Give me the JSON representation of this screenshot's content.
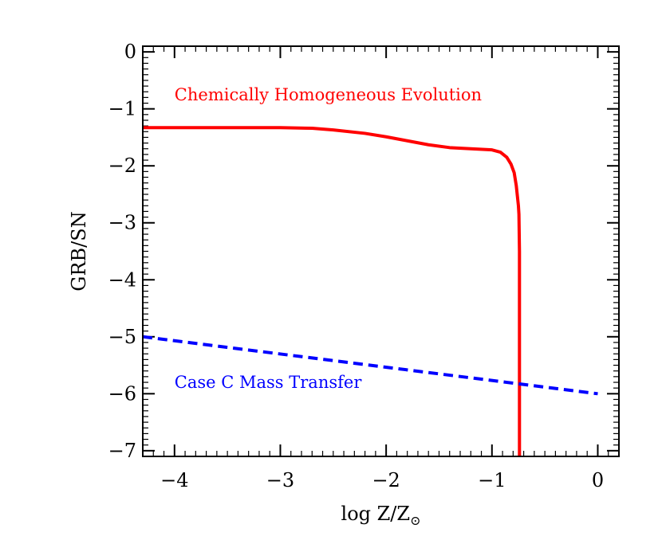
{
  "chart_data": {
    "type": "line",
    "xlabel": "log Z/Z",
    "xlabel_subscript": "⊙",
    "ylabel": "GRB/SN",
    "xlim": [
      -4.3,
      0.2
    ],
    "ylim": [
      -7.1,
      0.1
    ],
    "x_major_ticks": [
      -4,
      -3,
      -2,
      -1,
      0
    ],
    "x_tick_labels": [
      "−4",
      "−3",
      "−2",
      "−1",
      "0"
    ],
    "y_major_ticks": [
      0,
      -1,
      -2,
      -3,
      -4,
      -5,
      -6,
      -7
    ],
    "y_tick_labels": [
      "0",
      "−1",
      "−2",
      "−3",
      "−4",
      "−5",
      "−6",
      "−7"
    ],
    "grid": false,
    "series": [
      {
        "name": "Chemically Homogeneous Evolution",
        "color": "#ff0000",
        "style": "solid",
        "x": [
          -4.3,
          -3.5,
          -3.0,
          -2.7,
          -2.5,
          -2.2,
          -2.0,
          -1.8,
          -1.6,
          -1.4,
          -1.2,
          -1.0,
          -0.92,
          -0.86,
          -0.82,
          -0.79,
          -0.77,
          -0.75,
          -0.745,
          -0.74,
          -0.74
        ],
        "y": [
          -1.33,
          -1.33,
          -1.33,
          -1.34,
          -1.37,
          -1.43,
          -1.49,
          -1.56,
          -1.63,
          -1.68,
          -1.7,
          -1.72,
          -1.76,
          -1.85,
          -1.97,
          -2.12,
          -2.35,
          -2.7,
          -2.85,
          -3.5,
          -7.1
        ]
      },
      {
        "name": "Case C Mass Transfer",
        "color": "#0000ff",
        "style": "dashed",
        "x": [
          -4.3,
          0.0
        ],
        "y": [
          -5.0,
          -6.0
        ]
      }
    ],
    "annotations": [
      {
        "text": "Chemically Homogeneous Evolution",
        "color": "#ff0000",
        "x": -4.0,
        "y": -0.85
      },
      {
        "text": "Case C Mass Transfer",
        "color": "#0000ff",
        "x": -4.0,
        "y": -5.9
      }
    ]
  }
}
